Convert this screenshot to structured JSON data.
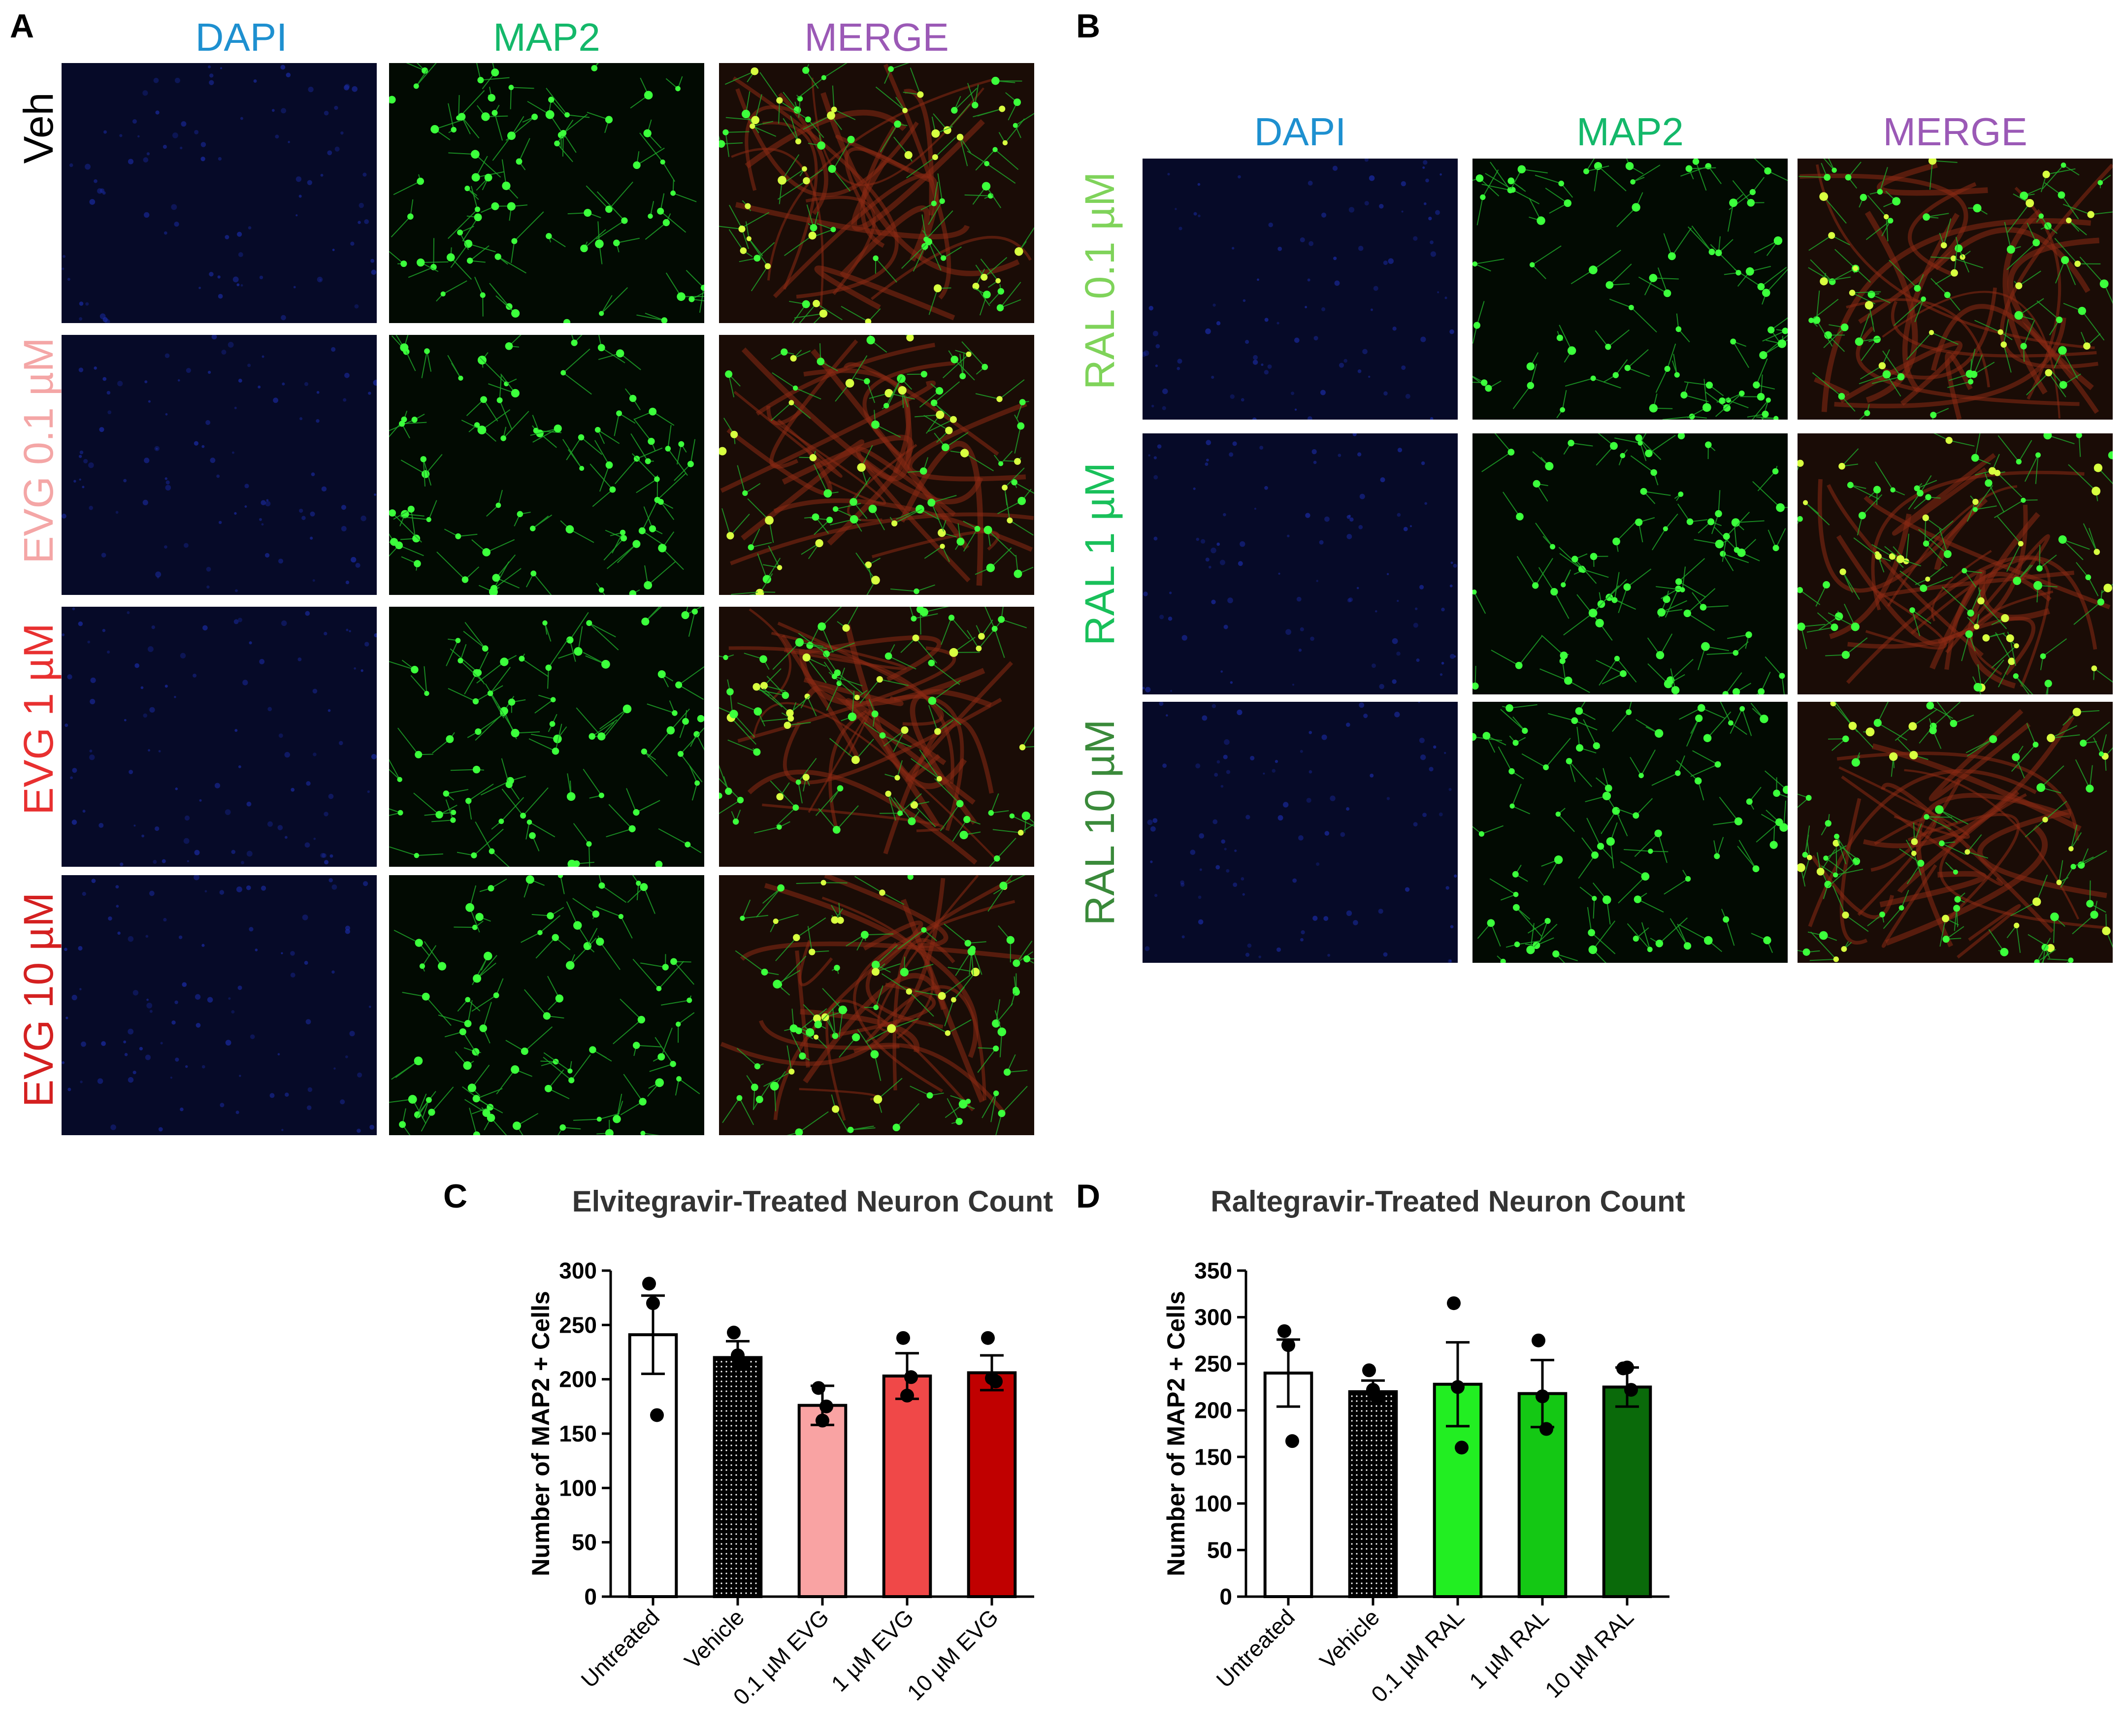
{
  "panels": {
    "A": {
      "letter": "A",
      "columns": [
        "DAPI",
        "MAP2",
        "MERGE"
      ],
      "rows": [
        "Veh",
        "EVG 0.1 µM",
        "EVG 1 µM",
        "EVG 10 µM"
      ],
      "row_colors": [
        "#000000",
        "#f4a6a6",
        "#e83030",
        "#d42020"
      ]
    },
    "B": {
      "letter": "B",
      "columns": [
        "DAPI",
        "MAP2",
        "MERGE"
      ],
      "rows": [
        "RAL 0.1 µM",
        "RAL 1 µM",
        "RAL 10 µM"
      ],
      "row_colors": [
        "#7fd35a",
        "#19c05a",
        "#3a8a3a"
      ]
    },
    "C": {
      "letter": "C"
    },
    "D": {
      "letter": "D"
    }
  },
  "colors": {
    "dapi_label": "#1e90d0",
    "map2_label": "#14b86a",
    "merge_label": "#9b59b6",
    "dapi_bg": "#060a28",
    "map2_bg": "#020a02",
    "merge_bg": "#1a0c06"
  },
  "chart_data": [
    {
      "type": "bar",
      "title": "Elvitegravir-Treated Neuron Count",
      "ylabel": "Number of MAP2 + Cells",
      "xlabel": "",
      "ylim": [
        0,
        300
      ],
      "yticks": [
        0,
        50,
        100,
        150,
        200,
        250,
        300
      ],
      "categories": [
        "Untreated",
        "Vehicle",
        "0.1 µM EVG",
        "1 µM EVG",
        "10 µM EVG"
      ],
      "values": [
        241,
        220,
        176,
        203,
        206
      ],
      "sem": [
        36,
        15,
        18,
        21,
        16
      ],
      "points": [
        [
          288,
          270,
          167
        ],
        [
          243,
          222,
          214
        ],
        [
          192,
          162,
          175
        ],
        [
          238,
          185,
          202
        ],
        [
          238,
          201,
          198
        ]
      ],
      "fills": [
        "#ffffff",
        "dots",
        "#f9a3a3",
        "#f04848",
        "#c00000"
      ]
    },
    {
      "type": "bar",
      "title": "Raltegravir-Treated Neuron Count",
      "ylabel": "Number of MAP2 + Cells",
      "xlabel": "",
      "ylim": [
        0,
        350
      ],
      "yticks": [
        0,
        50,
        100,
        150,
        200,
        250,
        300,
        350
      ],
      "categories": [
        "Untreated",
        "Vehicle",
        "0.1 µM RAL",
        "1 µM RAL",
        "10 µM RAL"
      ],
      "values": [
        240,
        220,
        228,
        218,
        225
      ],
      "sem": [
        36,
        12,
        45,
        36,
        21
      ],
      "points": [
        [
          285,
          270,
          167
        ],
        [
          243,
          222,
          214
        ],
        [
          315,
          225,
          160
        ],
        [
          275,
          215,
          180
        ],
        [
          245,
          246,
          222
        ]
      ],
      "fills": [
        "#ffffff",
        "dots",
        "#22ee22",
        "#14c814",
        "#0a6a0a"
      ]
    }
  ]
}
